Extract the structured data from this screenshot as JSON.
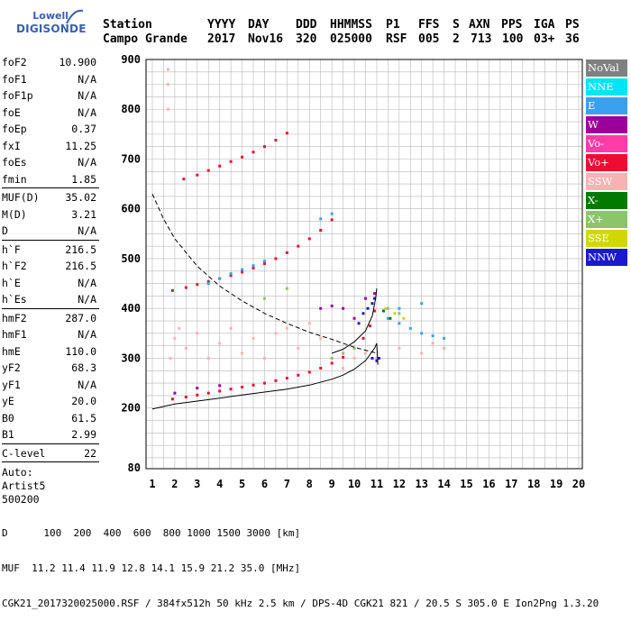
{
  "logo": {
    "line1": "Lowell",
    "line2": "DIGISONDE"
  },
  "header": {
    "station_label": "Station",
    "station_value": "Campo Grande",
    "yyyy_label": "YYYY",
    "yyyy_value": "2017",
    "day_label": "DAY",
    "day_value": "Nov16",
    "ddd_label": "DDD",
    "ddd_value": "320",
    "hhmmss_label": "HHMMSS",
    "hhmmss_value": "025000",
    "p1_label": "P1",
    "p1_value": "RSF",
    "ffs_label": "FFS",
    "ffs_value": "005",
    "s_label": "S",
    "s_value": "2",
    "axn_label": "AXN",
    "axn_value": "713",
    "pps_label": "PPS",
    "pps_value": "100",
    "iga_label": "IGA",
    "iga_value": "03+",
    "ps_label": "PS",
    "ps_value": "36"
  },
  "params": {
    "group1": [
      {
        "k": "foF2",
        "v": "10.900"
      },
      {
        "k": "foF1",
        "v": "N/A"
      },
      {
        "k": "foF1p",
        "v": "N/A"
      },
      {
        "k": "foE",
        "v": "N/A"
      },
      {
        "k": "foEp",
        "v": "0.37"
      },
      {
        "k": "fxI",
        "v": "11.25"
      },
      {
        "k": "foEs",
        "v": "N/A"
      },
      {
        "k": "fmin",
        "v": "1.85"
      }
    ],
    "group2": [
      {
        "k": "MUF(D)",
        "v": "35.02"
      },
      {
        "k": "M(D)",
        "v": "3.21"
      },
      {
        "k": "D",
        "v": "N/A"
      }
    ],
    "group3": [
      {
        "k": "h`F",
        "v": "216.5"
      },
      {
        "k": "h`F2",
        "v": "216.5"
      },
      {
        "k": "h`E",
        "v": "N/A"
      },
      {
        "k": "h`Es",
        "v": "N/A"
      }
    ],
    "group4": [
      {
        "k": "hmF2",
        "v": "287.0"
      },
      {
        "k": "hmF1",
        "v": "N/A"
      },
      {
        "k": "hmE",
        "v": "110.0"
      },
      {
        "k": "yF2",
        "v": "68.3"
      },
      {
        "k": "yF1",
        "v": "N/A"
      },
      {
        "k": "yE",
        "v": "20.0"
      },
      {
        "k": "B0",
        "v": "61.5"
      },
      {
        "k": "B1",
        "v": "2.99"
      }
    ],
    "group5": [
      {
        "k": "C-level",
        "v": "22"
      }
    ],
    "auto": [
      "Auto:",
      "Artist5",
      "500200"
    ]
  },
  "legend": [
    {
      "label": "NoVal",
      "bg": "#808080",
      "fg": "#ffffff"
    },
    {
      "label": "NNE",
      "bg": "#00e5f5",
      "fg": "#ffffff"
    },
    {
      "label": "E",
      "bg": "#3aa0f0",
      "fg": "#ffffff"
    },
    {
      "label": "W",
      "bg": "#9b009b",
      "fg": "#ffffff"
    },
    {
      "label": "Vo-",
      "bg": "#ff3ca8",
      "fg": "#ffffff"
    },
    {
      "label": "Vo+",
      "bg": "#ef0c34",
      "fg": "#ffffff"
    },
    {
      "label": "SSW",
      "bg": "#f7b3b3",
      "fg": "#ffffff"
    },
    {
      "label": "X-",
      "bg": "#007a00",
      "fg": "#ffffff"
    },
    {
      "label": "X+",
      "bg": "#8cc46c",
      "fg": "#ffffff"
    },
    {
      "label": "SSE",
      "bg": "#cfd800",
      "fg": "#ffffff"
    },
    {
      "label": "NNW",
      "bg": "#1a1acc",
      "fg": "#ffffff"
    }
  ],
  "footer": {
    "line1": "D      100  200  400  600  800 1000 1500 3000 [km]",
    "line2": "MUF  11.2 11.4 11.9 12.8 14.1 15.9 21.2 35.0 [MHz]",
    "line3": "CGK21_2017320025000.RSF / 384fx512h 50 kHz 2.5 km / DPS-4D CGK21 821 / 20.5 S 305.0 E Ion2Png 1.3.20"
  },
  "chart_data": {
    "type": "scatter",
    "xlim": [
      1,
      20
    ],
    "ylim": [
      80,
      900
    ],
    "x_ticks": [
      "1",
      "2",
      "3",
      "4",
      "5",
      "6",
      "7",
      "8",
      "9",
      "10",
      "11",
      "12",
      "13",
      "14",
      "15",
      "16",
      "17",
      "18",
      "19",
      "20"
    ],
    "y_ticks": [
      "80",
      "200",
      "300",
      "400",
      "500",
      "600",
      "700",
      "800",
      "900"
    ],
    "y_tick_values": [
      80,
      200,
      300,
      400,
      500,
      600,
      700,
      800,
      900
    ],
    "grid": true,
    "series": [
      {
        "name": "Vo+",
        "color": "#ef0c34",
        "points": [
          [
            1.9,
            218
          ],
          [
            2.5,
            222
          ],
          [
            3,
            226
          ],
          [
            3.5,
            230
          ],
          [
            4,
            234
          ],
          [
            4.5,
            238
          ],
          [
            5,
            242
          ],
          [
            5.5,
            246
          ],
          [
            6,
            250
          ],
          [
            6.5,
            255
          ],
          [
            7,
            260
          ],
          [
            7.5,
            266
          ],
          [
            8,
            272
          ],
          [
            8.5,
            280
          ],
          [
            9,
            290
          ],
          [
            9.5,
            302
          ],
          [
            10,
            320
          ],
          [
            10.4,
            340
          ],
          [
            10.7,
            365
          ],
          [
            10.9,
            395
          ]
        ]
      },
      {
        "name": "Vo+",
        "color": "#ef0c34",
        "points": [
          [
            1.9,
            436
          ],
          [
            2.5,
            442
          ],
          [
            3,
            448
          ],
          [
            3.5,
            454
          ],
          [
            4,
            460
          ],
          [
            4.5,
            466
          ],
          [
            5,
            473
          ],
          [
            5.5,
            481
          ],
          [
            6,
            490
          ],
          [
            6.5,
            500
          ],
          [
            7,
            512
          ],
          [
            7.5,
            525
          ],
          [
            8,
            540
          ],
          [
            8.5,
            557
          ],
          [
            9,
            578
          ]
        ]
      },
      {
        "name": "Vo+",
        "color": "#ef0c34",
        "points": [
          [
            2.4,
            660
          ],
          [
            3,
            668
          ],
          [
            3.5,
            677
          ],
          [
            4,
            686
          ],
          [
            4.5,
            695
          ],
          [
            5,
            704
          ],
          [
            5.5,
            714
          ],
          [
            6,
            725
          ],
          [
            6.5,
            738
          ],
          [
            7,
            752
          ]
        ]
      },
      {
        "name": "SSW",
        "color": "#f7b3b3",
        "points": [
          [
            1.8,
            300
          ],
          [
            2,
            340
          ],
          [
            2.2,
            360
          ],
          [
            2.5,
            320
          ],
          [
            3,
            350
          ],
          [
            3.5,
            300
          ],
          [
            4,
            330
          ],
          [
            4.5,
            360
          ],
          [
            5,
            310
          ],
          [
            5.5,
            340
          ],
          [
            6,
            300
          ],
          [
            6.5,
            350
          ],
          [
            7,
            360
          ],
          [
            7.5,
            320
          ],
          [
            8,
            370
          ],
          [
            8.5,
            340
          ],
          [
            9,
            300
          ],
          [
            9.5,
            280
          ],
          [
            10,
            300
          ],
          [
            10.5,
            310
          ],
          [
            11,
            300
          ],
          [
            12,
            320
          ],
          [
            13,
            310
          ],
          [
            13.5,
            330
          ],
          [
            14,
            320
          ],
          [
            1.7,
            800
          ],
          [
            1.7,
            850
          ],
          [
            1.7,
            880
          ]
        ]
      },
      {
        "name": "E",
        "color": "#3aa0f0",
        "points": [
          [
            3.5,
            450
          ],
          [
            4,
            460
          ],
          [
            4.5,
            470
          ],
          [
            5,
            478
          ],
          [
            5.5,
            486
          ],
          [
            6,
            495
          ],
          [
            8.5,
            580
          ],
          [
            9,
            590
          ],
          [
            11.5,
            380
          ],
          [
            12,
            370
          ],
          [
            12.5,
            360
          ],
          [
            13,
            350
          ],
          [
            13.5,
            345
          ],
          [
            14,
            340
          ],
          [
            12,
            400
          ],
          [
            13,
            410
          ]
        ]
      },
      {
        "name": "NNW",
        "color": "#1a1acc",
        "points": [
          [
            10.2,
            370
          ],
          [
            10.4,
            390
          ],
          [
            10.6,
            400
          ],
          [
            10.8,
            410
          ],
          [
            10.9,
            420
          ],
          [
            10.8,
            300
          ],
          [
            11,
            295
          ],
          [
            11.1,
            300
          ]
        ]
      },
      {
        "name": "W",
        "color": "#9b009b",
        "points": [
          [
            8.5,
            400
          ],
          [
            9,
            405
          ],
          [
            9.5,
            400
          ],
          [
            10,
            380
          ],
          [
            10.5,
            420
          ],
          [
            10.9,
            430
          ],
          [
            2,
            230
          ],
          [
            3,
            240
          ],
          [
            4,
            245
          ]
        ]
      },
      {
        "name": "X+",
        "color": "#8cc46c",
        "points": [
          [
            9,
            300
          ],
          [
            9.5,
            310
          ],
          [
            10,
            320
          ],
          [
            11.5,
            400
          ],
          [
            12,
            390
          ],
          [
            6,
            420
          ],
          [
            7,
            440
          ]
        ]
      },
      {
        "name": "X-",
        "color": "#007a00",
        "points": [
          [
            11.3,
            395
          ],
          [
            11.6,
            380
          ]
        ]
      },
      {
        "name": "SSE",
        "color": "#cfd800",
        "points": [
          [
            11.4,
            400
          ],
          [
            11.8,
            390
          ],
          [
            12.2,
            380
          ]
        ]
      }
    ],
    "profile_solid": [
      [
        1,
        198
      ],
      [
        2,
        208
      ],
      [
        3,
        214
      ],
      [
        4,
        220
      ],
      [
        5,
        226
      ],
      [
        6,
        232
      ],
      [
        7,
        238
      ],
      [
        8,
        246
      ],
      [
        9,
        258
      ],
      [
        9.5,
        266
      ],
      [
        10,
        278
      ],
      [
        10.5,
        295
      ],
      [
        10.9,
        320
      ],
      [
        11,
        330
      ],
      [
        11.05,
        287
      ]
    ],
    "profile_upper": [
      [
        9,
        310
      ],
      [
        9.5,
        318
      ],
      [
        10,
        333
      ],
      [
        10.5,
        355
      ],
      [
        10.8,
        385
      ],
      [
        10.95,
        420
      ],
      [
        11,
        440
      ]
    ],
    "muf_curve": [
      [
        1,
        630
      ],
      [
        1.5,
        580
      ],
      [
        2,
        540
      ],
      [
        3,
        485
      ],
      [
        4,
        445
      ],
      [
        5,
        415
      ],
      [
        6,
        390
      ],
      [
        7,
        370
      ],
      [
        8,
        352
      ],
      [
        9,
        338
      ],
      [
        10,
        322
      ],
      [
        11,
        310
      ]
    ]
  }
}
